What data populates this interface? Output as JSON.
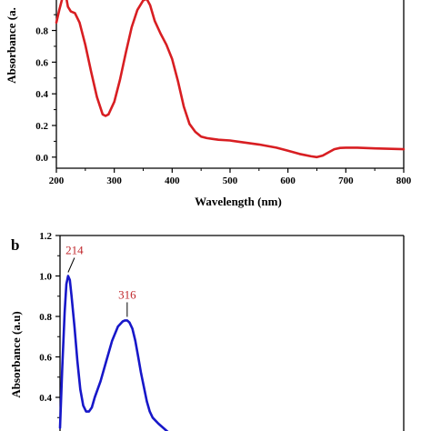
{
  "chart_data": [
    {
      "panel": "a",
      "type": "line",
      "xlabel": "Wavelength (nm)",
      "ylabel": "Absorbance (a.",
      "xlim": [
        200,
        800
      ],
      "ylim": [
        -0.07,
        1.05
      ],
      "xticks": [
        200,
        300,
        400,
        500,
        600,
        700,
        800
      ],
      "yticks": [
        0.0,
        0.2,
        0.4,
        0.6,
        0.8
      ],
      "ytick_labels": [
        "0.0",
        "0.2",
        "0.4",
        "0.6",
        "0.8"
      ],
      "color": "#d81e22",
      "series": [
        {
          "x": [
            200,
            205,
            210,
            215,
            220,
            225,
            232,
            240,
            250,
            260,
            270,
            280,
            285,
            290,
            300,
            310,
            320,
            330,
            340,
            350,
            356,
            362,
            370,
            380,
            390,
            400,
            410,
            420,
            430,
            440,
            450,
            460,
            470,
            480,
            500,
            520,
            550,
            580,
            600,
            620,
            640,
            650,
            660,
            670,
            680,
            690,
            700,
            720,
            750,
            800
          ],
          "y": [
            0.85,
            0.93,
            1.0,
            1.05,
            0.95,
            0.92,
            0.91,
            0.85,
            0.71,
            0.54,
            0.38,
            0.27,
            0.26,
            0.27,
            0.35,
            0.49,
            0.66,
            0.82,
            0.93,
            0.99,
            1.0,
            0.96,
            0.86,
            0.78,
            0.71,
            0.62,
            0.48,
            0.32,
            0.21,
            0.16,
            0.13,
            0.12,
            0.115,
            0.11,
            0.105,
            0.095,
            0.08,
            0.06,
            0.04,
            0.02,
            0.005,
            0.0,
            0.01,
            0.03,
            0.05,
            0.058,
            0.06,
            0.06,
            0.055,
            0.05
          ]
        }
      ]
    },
    {
      "panel": "b",
      "type": "line",
      "xlabel": "",
      "ylabel": "Absorbance (a.u)",
      "ylim": [
        0.2,
        1.2
      ],
      "yticks": [
        0.4,
        0.6,
        0.8,
        1.0,
        1.2
      ],
      "ytick_labels": [
        "0.4",
        "0.6",
        "0.8",
        "1.0",
        "1.2"
      ],
      "color": "#1717c9",
      "annotations": [
        {
          "text": "214",
          "x": 214,
          "y": 1.0
        },
        {
          "text": "316",
          "x": 316,
          "y": 0.78
        }
      ],
      "series": [
        {
          "x": [
            200,
            204,
            208,
            211,
            214,
            217,
            220,
            225,
            230,
            235,
            240,
            245,
            250,
            255,
            260,
            270,
            280,
            290,
            300,
            308,
            312,
            316,
            320,
            325,
            330,
            335,
            340,
            345,
            350,
            355,
            360,
            370,
            380,
            390,
            400
          ],
          "y": [
            0.25,
            0.55,
            0.82,
            0.96,
            1.0,
            0.98,
            0.9,
            0.75,
            0.58,
            0.44,
            0.36,
            0.33,
            0.33,
            0.35,
            0.4,
            0.48,
            0.58,
            0.68,
            0.75,
            0.775,
            0.78,
            0.78,
            0.77,
            0.74,
            0.68,
            0.6,
            0.52,
            0.45,
            0.38,
            0.33,
            0.3,
            0.27,
            0.245,
            0.22,
            0.2
          ]
        }
      ]
    }
  ],
  "panels": {
    "a": {
      "xlabel": "Wavelength (nm)",
      "ylabel": "Absorbance (a."
    },
    "b": {
      "letter": "b",
      "ylabel": "Absorbance (a.u)"
    }
  }
}
